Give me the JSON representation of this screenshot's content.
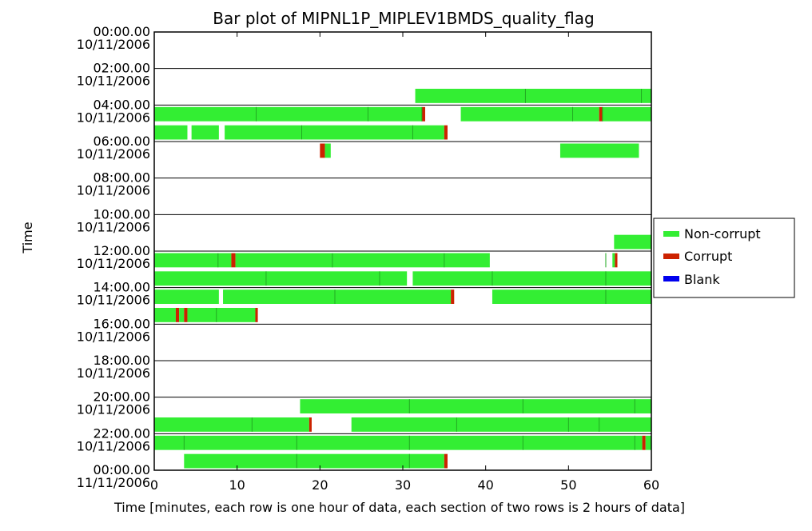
{
  "chart_data": {
    "type": "bar",
    "title": "Bar plot of MIPNL1P_MIPLEV1BMDS_quality_flag",
    "xlabel": "Time [minutes, each row is one hour of data, each section of two rows is 2 hours of data]",
    "ylabel": "Time",
    "xlim": [
      0,
      60
    ],
    "xticks": [
      "0",
      "10",
      "20",
      "30",
      "40",
      "50",
      "60"
    ],
    "yticks": [
      [
        "00:00.00",
        "10/11/2006"
      ],
      [
        "02:00.00",
        "10/11/2006"
      ],
      [
        "04:00.00",
        "10/11/2006"
      ],
      [
        "06:00.00",
        "10/11/2006"
      ],
      [
        "08:00.00",
        "10/11/2006"
      ],
      [
        "10:00.00",
        "10/11/2006"
      ],
      [
        "12:00.00",
        "10/11/2006"
      ],
      [
        "14:00.00",
        "10/11/2006"
      ],
      [
        "16:00.00",
        "10/11/2006"
      ],
      [
        "18:00.00",
        "10/11/2006"
      ],
      [
        "20:00.00",
        "10/11/2006"
      ],
      [
        "22:00.00",
        "10/11/2006"
      ],
      [
        "00:00.00",
        "11/11/2006"
      ]
    ],
    "legend": {
      "position": "right",
      "entries": [
        {
          "label": "Non-corrupt",
          "color": "#33ee33"
        },
        {
          "label": "Corrupt",
          "color": "#cc2200"
        },
        {
          "label": "Blank",
          "color": "#0000ee"
        }
      ]
    },
    "colors": {
      "non_corrupt": "#33ee33",
      "corrupt": "#cc2200",
      "blank": "#0000ee",
      "dark": "#22aa22"
    },
    "rows": [
      {
        "hour": 0,
        "segments": []
      },
      {
        "hour": 1,
        "segments": []
      },
      {
        "hour": 2,
        "segments": []
      },
      {
        "hour": 3,
        "segments": [
          [
            31.5,
            60,
            "ok"
          ]
        ]
      },
      {
        "hour": 4,
        "segments": [
          [
            0,
            32.3,
            "ok"
          ],
          [
            32.3,
            32.7,
            "bad"
          ],
          [
            37.0,
            53.7,
            "ok"
          ],
          [
            53.7,
            54.1,
            "bad"
          ],
          [
            54.1,
            60,
            "ok"
          ]
        ]
      },
      {
        "hour": 5,
        "segments": [
          [
            0,
            4.0,
            "ok"
          ],
          [
            4.5,
            7.8,
            "ok"
          ],
          [
            8.5,
            35.0,
            "ok"
          ],
          [
            35.0,
            35.4,
            "bad"
          ]
        ]
      },
      {
        "hour": 6,
        "segments": [
          [
            20.0,
            20.6,
            "bad"
          ],
          [
            20.6,
            21.3,
            "ok"
          ],
          [
            49.0,
            58.5,
            "ok"
          ]
        ]
      },
      {
        "hour": 7,
        "segments": []
      },
      {
        "hour": 8,
        "segments": []
      },
      {
        "hour": 9,
        "segments": []
      },
      {
        "hour": 10,
        "segments": []
      },
      {
        "hour": 11,
        "segments": [
          [
            55.5,
            60,
            "ok"
          ]
        ]
      },
      {
        "hour": 12,
        "segments": [
          [
            0,
            9.3,
            "ok"
          ],
          [
            9.3,
            9.8,
            "bad"
          ],
          [
            9.8,
            40.5,
            "ok"
          ],
          [
            55.3,
            55.6,
            "ok"
          ],
          [
            55.6,
            55.9,
            "bad"
          ]
        ]
      },
      {
        "hour": 13,
        "segments": [
          [
            0,
            30.5,
            "ok"
          ],
          [
            31.2,
            60,
            "ok"
          ]
        ]
      },
      {
        "hour": 14,
        "segments": [
          [
            0,
            7.8,
            "ok"
          ],
          [
            8.3,
            35.8,
            "ok"
          ],
          [
            35.8,
            36.2,
            "bad"
          ],
          [
            40.8,
            60,
            "ok"
          ]
        ]
      },
      {
        "hour": 15,
        "segments": [
          [
            0,
            2.6,
            "ok"
          ],
          [
            2.6,
            3.0,
            "bad"
          ],
          [
            3.0,
            3.6,
            "ok"
          ],
          [
            3.6,
            4.0,
            "bad"
          ],
          [
            4.0,
            12.2,
            "ok"
          ],
          [
            12.2,
            12.5,
            "bad"
          ]
        ]
      },
      {
        "hour": 16,
        "segments": []
      },
      {
        "hour": 17,
        "segments": []
      },
      {
        "hour": 18,
        "segments": []
      },
      {
        "hour": 19,
        "segments": []
      },
      {
        "hour": 20,
        "segments": [
          [
            17.6,
            60,
            "ok"
          ]
        ]
      },
      {
        "hour": 21,
        "segments": [
          [
            0,
            18.7,
            "ok"
          ],
          [
            18.7,
            19.0,
            "bad"
          ],
          [
            23.8,
            60,
            "ok"
          ]
        ]
      },
      {
        "hour": 22,
        "segments": [
          [
            0,
            58.9,
            "ok"
          ],
          [
            58.9,
            59.3,
            "bad"
          ],
          [
            59.3,
            60,
            "ok"
          ]
        ]
      },
      {
        "hour": 23,
        "segments": [
          [
            3.6,
            35.0,
            "ok"
          ],
          [
            35.0,
            35.4,
            "bad"
          ]
        ]
      }
    ],
    "dividers": {
      "3": [
        44.8,
        58.8
      ],
      "4": [
        12.3,
        25.8,
        32.3,
        50.5,
        54.1
      ],
      "5": [
        17.8,
        31.2
      ],
      "12": [
        7.7,
        21.5,
        35.0,
        54.5
      ],
      "13": [
        13.5,
        27.2,
        40.8,
        54.5
      ],
      "14": [
        21.8,
        54.5
      ],
      "15": [
        7.5
      ],
      "20": [
        30.8,
        44.5,
        58.0
      ],
      "21": [
        11.8,
        36.5,
        50.0,
        53.7
      ],
      "22": [
        3.6,
        17.2,
        30.8,
        44.5,
        58.0
      ],
      "23": [
        17.2,
        30.8
      ]
    }
  }
}
